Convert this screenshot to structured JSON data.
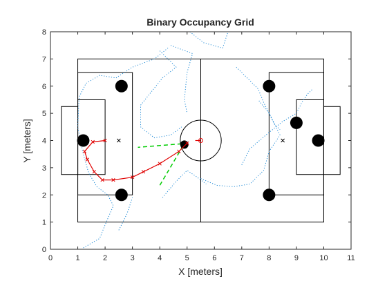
{
  "chart_data": {
    "type": "scatter",
    "title": "Binary Occupancy Grid",
    "xlabel": "X [meters]",
    "ylabel": "Y [meters]",
    "xlim": [
      0,
      11
    ],
    "ylim": [
      0,
      8
    ],
    "xticks": [
      0,
      1,
      2,
      3,
      4,
      5,
      6,
      7,
      8,
      9,
      10,
      11
    ],
    "yticks": [
      0,
      1,
      2,
      3,
      4,
      5,
      6,
      7,
      8
    ],
    "grid": false,
    "legend": "none",
    "colors": {
      "axes": "#262626",
      "field": "#000000",
      "path": "#e00000",
      "obstacle": "#000000",
      "trails": "#1f8ad6",
      "rays": "#00cc00"
    },
    "field": {
      "outer": [
        1,
        1,
        10,
        7
      ],
      "halfway_x": 5.5,
      "center": [
        5.5,
        4
      ],
      "center_radius": 0.75,
      "left_box": [
        1,
        2,
        3,
        6.5
      ],
      "left_small_box": [
        1,
        2.75,
        2,
        5.5
      ],
      "left_goal": [
        0.4,
        2.75,
        1,
        5.25
      ],
      "right_box": [
        8,
        2,
        10,
        6.5
      ],
      "right_small_box": [
        9,
        2.75,
        10,
        5.5
      ],
      "right_goal": [
        10,
        2.75,
        10.6,
        5.25
      ]
    },
    "penalty_marks": [
      [
        2.5,
        4
      ],
      [
        8.5,
        4
      ]
    ],
    "obstacles": [
      [
        2.6,
        6.0
      ],
      [
        1.2,
        4.0
      ],
      [
        2.6,
        2.0
      ],
      [
        4.9,
        3.85
      ],
      [
        8.0,
        6.0
      ],
      [
        9.0,
        4.65
      ],
      [
        9.8,
        4.0
      ],
      [
        8.0,
        2.0
      ]
    ],
    "robot_path": [
      [
        5.0,
        3.9
      ],
      [
        4.7,
        3.6
      ],
      [
        4.0,
        3.15
      ],
      [
        3.4,
        2.85
      ],
      [
        3.0,
        2.65
      ],
      [
        2.3,
        2.55
      ],
      [
        1.9,
        2.55
      ],
      [
        1.6,
        2.85
      ],
      [
        1.35,
        3.3
      ],
      [
        1.25,
        3.6
      ],
      [
        1.55,
        3.95
      ],
      [
        2.0,
        4.0
      ]
    ],
    "robot_heading": [
      [
        5.3,
        4.0
      ],
      [
        5.5,
        4.0
      ]
    ],
    "rays": [
      [
        [
          4.8,
          3.88
        ],
        [
          3.2,
          3.75
        ]
      ],
      [
        [
          4.85,
          3.8
        ],
        [
          4.0,
          2.35
        ]
      ]
    ],
    "trails": [
      [
        [
          1.2,
          0.05
        ],
        [
          1.8,
          0.4
        ],
        [
          2.0,
          0.9
        ],
        [
          2.3,
          1.6
        ],
        [
          2.1,
          2.0
        ],
        [
          1.7,
          2.3
        ],
        [
          1.4,
          2.8
        ],
        [
          1.2,
          3.5
        ],
        [
          1.0,
          4.5
        ],
        [
          1.05,
          5.6
        ],
        [
          1.3,
          6.1
        ],
        [
          1.8,
          6.4
        ],
        [
          2.4,
          6.3
        ],
        [
          3.0,
          6.7
        ],
        [
          3.8,
          7.0
        ],
        [
          4.3,
          7.4
        ]
      ],
      [
        [
          4.0,
          7.3
        ],
        [
          4.6,
          6.7
        ],
        [
          4.1,
          6.3
        ],
        [
          3.3,
          5.3
        ],
        [
          3.3,
          4.5
        ],
        [
          3.8,
          4.1
        ],
        [
          4.4,
          4.2
        ],
        [
          4.8,
          4.5
        ]
      ],
      [
        [
          4.4,
          7.5
        ],
        [
          5.2,
          7.2
        ],
        [
          5.0,
          6.5
        ],
        [
          4.9,
          5.5
        ],
        [
          5.0,
          5.0
        ]
      ],
      [
        [
          5.1,
          8.0
        ],
        [
          5.6,
          7.6
        ],
        [
          6.3,
          7.4
        ],
        [
          6.5,
          8.0
        ]
      ],
      [
        [
          5.5,
          2.6
        ],
        [
          6.1,
          2.35
        ],
        [
          6.7,
          2.3
        ],
        [
          7.3,
          2.4
        ],
        [
          7.8,
          2.9
        ],
        [
          8.0,
          3.6
        ],
        [
          8.4,
          4.2
        ],
        [
          8.0,
          5.0
        ],
        [
          7.6,
          5.5
        ]
      ],
      [
        [
          4.1,
          1.9
        ],
        [
          4.6,
          2.5
        ],
        [
          5.0,
          2.9
        ],
        [
          5.3,
          2.7
        ],
        [
          5.7,
          2.4
        ]
      ],
      [
        [
          7.0,
          3.1
        ],
        [
          7.3,
          3.7
        ],
        [
          8.0,
          4.3
        ],
        [
          8.5,
          4.7
        ],
        [
          9.0,
          5.0
        ],
        [
          9.2,
          5.4
        ],
        [
          9.4,
          5.7
        ],
        [
          9.6,
          5.9
        ]
      ],
      [
        [
          6.8,
          6.7
        ],
        [
          7.2,
          6.3
        ],
        [
          7.6,
          5.9
        ],
        [
          7.8,
          5.4
        ],
        [
          8.0,
          5.0
        ],
        [
          8.2,
          4.6
        ],
        [
          8.4,
          4.4
        ]
      ],
      [
        [
          2.5,
          0.7
        ],
        [
          2.8,
          1.3
        ],
        [
          3.0,
          1.9
        ]
      ]
    ]
  }
}
